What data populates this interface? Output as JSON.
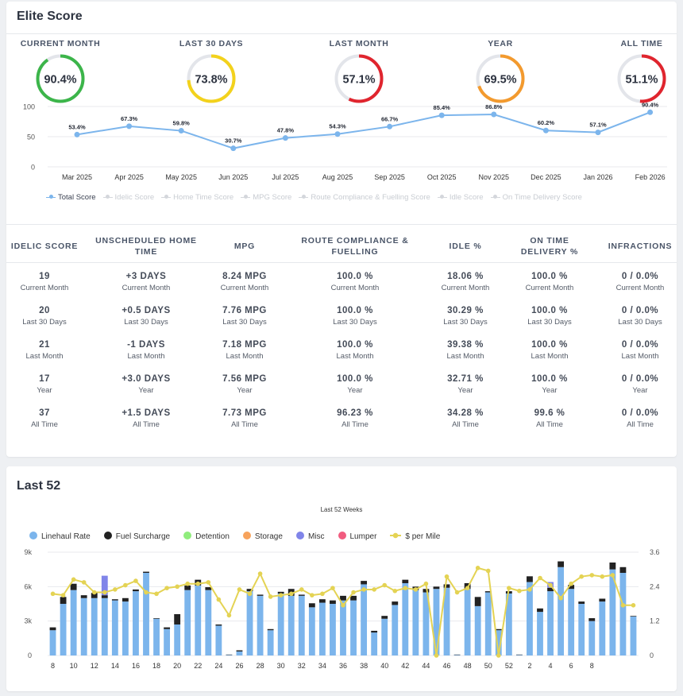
{
  "score_card": {
    "title": "Elite Score",
    "gauges": [
      {
        "label": "CURRENT MONTH",
        "value": "90.4%",
        "pct": 90.4,
        "color": "#3cb54a"
      },
      {
        "label": "LAST 30 DAYS",
        "value": "73.8%",
        "pct": 73.8,
        "color": "#f3d21c"
      },
      {
        "label": "LAST MONTH",
        "value": "57.1%",
        "pct": 57.1,
        "color": "#e0252e"
      },
      {
        "label": "YEAR",
        "value": "69.5%",
        "pct": 69.5,
        "color": "#f39a2e"
      },
      {
        "label": "ALL TIME",
        "value": "51.1%",
        "pct": 51.1,
        "color": "#e0252e"
      }
    ],
    "legend": [
      {
        "label": "Total Score",
        "active": true
      },
      {
        "label": "Idelic Score",
        "active": false
      },
      {
        "label": "Home Time Score",
        "active": false
      },
      {
        "label": "MPG Score",
        "active": false
      },
      {
        "label": "Route Compliance & Fuelling Score",
        "active": false
      },
      {
        "label": "Idle Score",
        "active": false
      },
      {
        "label": "On Time Delivery Score",
        "active": false
      }
    ]
  },
  "chart_data": [
    {
      "type": "line",
      "categories": [
        "Mar 2025",
        "Apr 2025",
        "May 2025",
        "Jun 2025",
        "Jul 2025",
        "Aug 2025",
        "Sep 2025",
        "Oct 2025",
        "Nov 2025",
        "Dec 2025",
        "Jan 2026",
        "Feb 2026"
      ],
      "series": [
        {
          "name": "Total Score",
          "values": [
            53.4,
            67.3,
            59.8,
            30.7,
            47.8,
            54.3,
            66.7,
            85.4,
            86.8,
            60.2,
            57.1,
            90.4
          ],
          "color": "#7cb5ec"
        }
      ],
      "data_labels": [
        "53.4%",
        "67.3%",
        "59.8%",
        "30.7%",
        "47.8%",
        "54.3%",
        "66.7%",
        "85.4%",
        "86.8%",
        "60.2%",
        "57.1%",
        "90.4%"
      ],
      "y_ticks": [
        "0",
        "50",
        "100"
      ],
      "ylim": [
        0,
        100
      ],
      "grid": true,
      "legend_position": "bottom"
    },
    {
      "type": "bar",
      "title": "Last 52 Weeks",
      "x_ticks": [
        "8",
        "10",
        "12",
        "14",
        "16",
        "18",
        "20",
        "22",
        "24",
        "26",
        "28",
        "30",
        "32",
        "34",
        "36",
        "38",
        "40",
        "42",
        "44",
        "46",
        "48",
        "50",
        "52",
        "2",
        "4",
        "6",
        "8"
      ],
      "y_left_ticks": [
        "0",
        "3k",
        "6k",
        "9k"
      ],
      "y_right_ticks": [
        "0",
        "1.2",
        "2.4",
        "3.6"
      ],
      "ylim": [
        0,
        9000
      ],
      "y2lim": [
        0,
        3.6
      ],
      "stacked": true,
      "legend_position": "top",
      "series": [
        {
          "name": "Linehaul Rate",
          "color": "#7cb5ec",
          "values": [
            2200,
            4500,
            5700,
            5000,
            5000,
            5000,
            4800,
            4700,
            5600,
            7200,
            3200,
            2300,
            2700,
            5700,
            6100,
            5700,
            2600,
            50,
            350,
            5600,
            5200,
            2200,
            5400,
            5200,
            5200,
            4200,
            4600,
            4500,
            4800,
            4800,
            6200,
            2000,
            3200,
            4400,
            6300,
            5700,
            5500,
            5800,
            5900,
            50,
            5800,
            4300,
            5500,
            2200,
            5400,
            50,
            6400,
            3800,
            5600,
            7700,
            5800,
            4500,
            3000,
            4700,
            7500,
            7200,
            3400
          ]
        },
        {
          "name": "Fuel Surcharge",
          "color": "#222222",
          "values": [
            250,
            600,
            550,
            250,
            450,
            250,
            100,
            300,
            150,
            100,
            50,
            150,
            900,
            400,
            500,
            250,
            100,
            30,
            100,
            200,
            100,
            100,
            150,
            600,
            100,
            350,
            300,
            300,
            400,
            400,
            300,
            150,
            250,
            300,
            300,
            300,
            300,
            200,
            300,
            30,
            500,
            800,
            100,
            100,
            200,
            30,
            500,
            300,
            300,
            500,
            350,
            200,
            250,
            250,
            600,
            500,
            50
          ]
        },
        {
          "name": "Detention",
          "color": "#90ed7d",
          "values": [
            0,
            0,
            0,
            0,
            0,
            0,
            0,
            0,
            0,
            0,
            0,
            0,
            0,
            0,
            0,
            0,
            0,
            0,
            0,
            0,
            0,
            0,
            0,
            0,
            0,
            0,
            0,
            0,
            0,
            0,
            0,
            0,
            0,
            0,
            0,
            0,
            0,
            0,
            0,
            0,
            0,
            0,
            0,
            0,
            0,
            0,
            0,
            0,
            0,
            0,
            0,
            0,
            0,
            0,
            0,
            0,
            0
          ]
        },
        {
          "name": "Storage",
          "color": "#f7a35c",
          "values": [
            0,
            0,
            0,
            0,
            0,
            0,
            0,
            0,
            0,
            0,
            0,
            0,
            0,
            0,
            0,
            0,
            0,
            0,
            0,
            0,
            0,
            0,
            0,
            0,
            0,
            0,
            0,
            0,
            0,
            0,
            0,
            0,
            0,
            0,
            0,
            0,
            0,
            0,
            0,
            0,
            0,
            0,
            0,
            0,
            0,
            0,
            0,
            0,
            0,
            0,
            0,
            0,
            0,
            0,
            0,
            0,
            0
          ]
        },
        {
          "name": "Misc",
          "color": "#8085e9",
          "values": [
            0,
            0,
            0,
            0,
            0,
            1700,
            0,
            0,
            0,
            0,
            0,
            0,
            0,
            0,
            0,
            0,
            0,
            0,
            0,
            0,
            0,
            0,
            0,
            0,
            0,
            0,
            0,
            0,
            0,
            0,
            0,
            0,
            0,
            0,
            0,
            0,
            0,
            0,
            0,
            0,
            0,
            0,
            0,
            0,
            0,
            0,
            0,
            0,
            500,
            0,
            0,
            0,
            0,
            0,
            0,
            0,
            0
          ]
        },
        {
          "name": "Lumper",
          "color": "#f15c80",
          "values": [
            0,
            0,
            0,
            0,
            0,
            0,
            0,
            0,
            0,
            0,
            0,
            0,
            0,
            0,
            0,
            0,
            0,
            0,
            0,
            0,
            0,
            0,
            0,
            0,
            0,
            0,
            0,
            0,
            0,
            0,
            0,
            0,
            0,
            0,
            0,
            0,
            0,
            0,
            0,
            0,
            0,
            0,
            0,
            0,
            0,
            0,
            0,
            0,
            0,
            0,
            0,
            0,
            0,
            0,
            0,
            0,
            0
          ]
        },
        {
          "name": "$ per Mile",
          "color": "#e4d354",
          "type": "line",
          "axis": "right",
          "values": [
            2.15,
            2.1,
            2.65,
            2.55,
            2.2,
            2.2,
            2.3,
            2.45,
            2.6,
            2.2,
            2.15,
            2.35,
            2.4,
            2.5,
            2.5,
            2.55,
            1.95,
            1.4,
            2.3,
            2.15,
            2.85,
            2.05,
            2.1,
            2.15,
            2.3,
            2.1,
            2.15,
            2.35,
            1.75,
            2.2,
            2.3,
            2.3,
            2.45,
            2.25,
            2.35,
            2.3,
            2.5,
            0,
            2.75,
            2.2,
            2.35,
            3.05,
            2.95,
            0,
            2.35,
            2.25,
            2.3,
            2.7,
            2.45,
            2.0,
            2.5,
            2.75,
            2.8,
            2.75,
            2.8,
            1.75,
            1.75
          ]
        }
      ]
    }
  ],
  "stats": {
    "headers": [
      "IDELIC SCORE",
      "UNSCHEDULED HOME TIME",
      "MPG",
      "ROUTE COMPLIANCE & FUELLING",
      "IDLE %",
      "ON TIME DELIVERY %",
      "INFRACTIONS"
    ],
    "rows": [
      {
        "values": [
          "19",
          "+3 DAYS",
          "8.24 MPG",
          "100.0 %",
          "18.06 %",
          "100.0 %",
          "0 / 0.0%"
        ],
        "period": "Current Month"
      },
      {
        "values": [
          "20",
          "+0.5 DAYS",
          "7.76 MPG",
          "100.0 %",
          "30.29 %",
          "100.0 %",
          "0 / 0.0%"
        ],
        "period": "Last 30 Days"
      },
      {
        "values": [
          "21",
          "-1 DAYS",
          "7.18 MPG",
          "100.0 %",
          "39.38 %",
          "100.0 %",
          "0 / 0.0%"
        ],
        "period": "Last Month"
      },
      {
        "values": [
          "17",
          "+3.0 DAYS",
          "7.56 MPG",
          "100.0 %",
          "32.71 %",
          "100.0 %",
          "0 / 0.0%"
        ],
        "period": "Year"
      },
      {
        "values": [
          "37",
          "+1.5 DAYS",
          "7.73 MPG",
          "96.23 %",
          "34.28 %",
          "99.6 %",
          "0 / 0.0%"
        ],
        "period": "All Time"
      }
    ]
  },
  "last52_card": {
    "title": "Last 52"
  }
}
